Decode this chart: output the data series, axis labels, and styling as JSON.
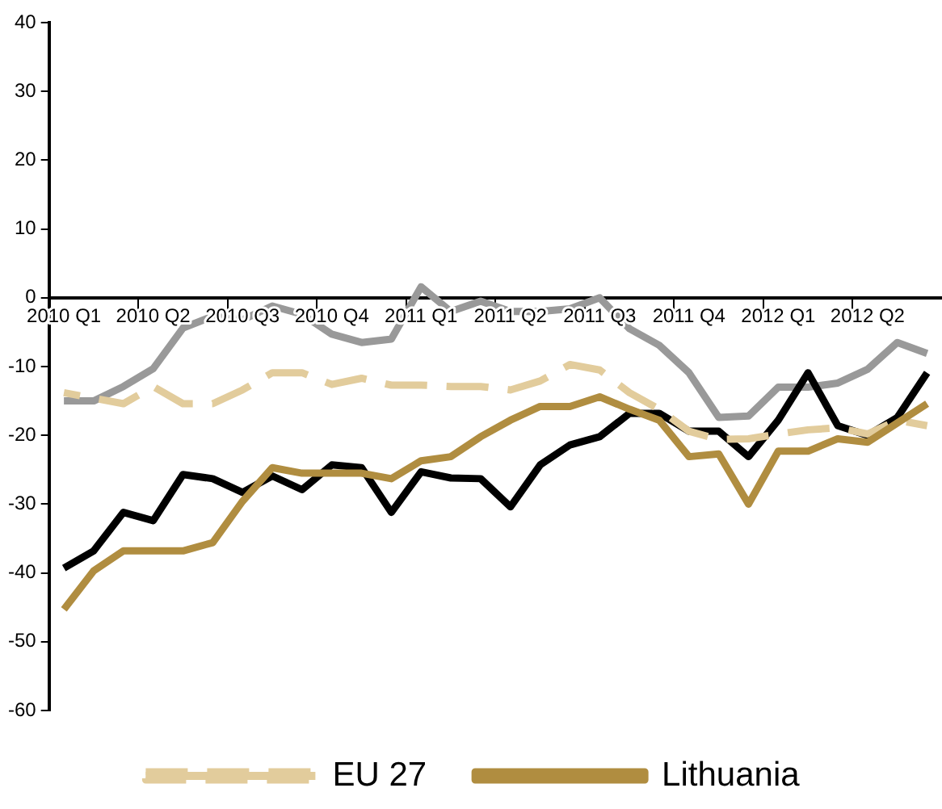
{
  "chart_data": {
    "type": "line",
    "categories": [
      "2010 Q1",
      null,
      null,
      "2010 Q2",
      null,
      null,
      "2010 Q3",
      null,
      null,
      "2010 Q4",
      null,
      null,
      "2011 Q1",
      null,
      null,
      "2011 Q2",
      null,
      null,
      "2011 Q3",
      null,
      null,
      "2011 Q4",
      null,
      null,
      "2012 Q1",
      null,
      null,
      "2012 Q2",
      null,
      null
    ],
    "series": [
      {
        "color": "#999999",
        "values": [
          -15,
          -15,
          -12.9,
          -10.3,
          -4.4,
          -2.7,
          -3.2,
          -1.2,
          -2.4,
          -5.3,
          -6.5,
          -6,
          1.6,
          -2,
          -0.5,
          -2,
          -2,
          -1.6,
          0,
          -4.5,
          -6.9,
          -10.9,
          -17.4,
          -17.2,
          -13,
          -13,
          -12.4,
          -10.4,
          -6.5,
          -8.1
        ]
      },
      {
        "color": "#000000",
        "values": [
          -39.3,
          -36.8,
          -31.2,
          -32.4,
          -25.7,
          -26.3,
          -28.3,
          -25.9,
          -27.9,
          -24.3,
          -24.7,
          -31.2,
          -25.3,
          -26.2,
          -26.3,
          -30.4,
          -24.3,
          -21.4,
          -20.2,
          -16.8,
          -16.8,
          -19.4,
          -19.4,
          -23.1,
          -17.8,
          -10.9,
          -18.6,
          -20,
          -17.4,
          -10.9
        ]
      },
      {
        "name": "EU 27",
        "color": "#e2cc9c",
        "line_style": "dashed",
        "values": [
          -13.8,
          -14.6,
          -15.4,
          -12.9,
          -15.4,
          -15.4,
          -13.4,
          -10.9,
          -10.9,
          -12.6,
          -11.7,
          -12.7,
          -12.7,
          -12.9,
          -12.9,
          -13.4,
          -12.1,
          -9.7,
          -10.5,
          -13.8,
          -16.2,
          -19.4,
          -20.6,
          -20.5,
          -19.8,
          -19.2,
          -18.9,
          -19.8,
          -17.8,
          -18.6
        ]
      },
      {
        "name": "Lithuania",
        "color": "#b08d40",
        "line_style": "solid",
        "values": [
          -45.3,
          -39.7,
          -36.8,
          -36.8,
          -36.8,
          -35.6,
          -29.6,
          -24.7,
          -25.5,
          -25.5,
          -25.5,
          -26.3,
          -23.7,
          -23.1,
          -20.2,
          -17.8,
          -15.8,
          -15.8,
          -14.4,
          -16.2,
          -17.8,
          -23.1,
          -22.7,
          -30,
          -22.3,
          -22.3,
          -20.5,
          -21,
          -18.2,
          -15.4
        ]
      }
    ],
    "ylim": [
      -60,
      40
    ],
    "yticks": [
      -60,
      -50,
      -40,
      -30,
      -20,
      -10,
      0,
      10,
      20,
      30,
      40
    ],
    "grid": false,
    "legend": "bottom",
    "marker": "none"
  }
}
